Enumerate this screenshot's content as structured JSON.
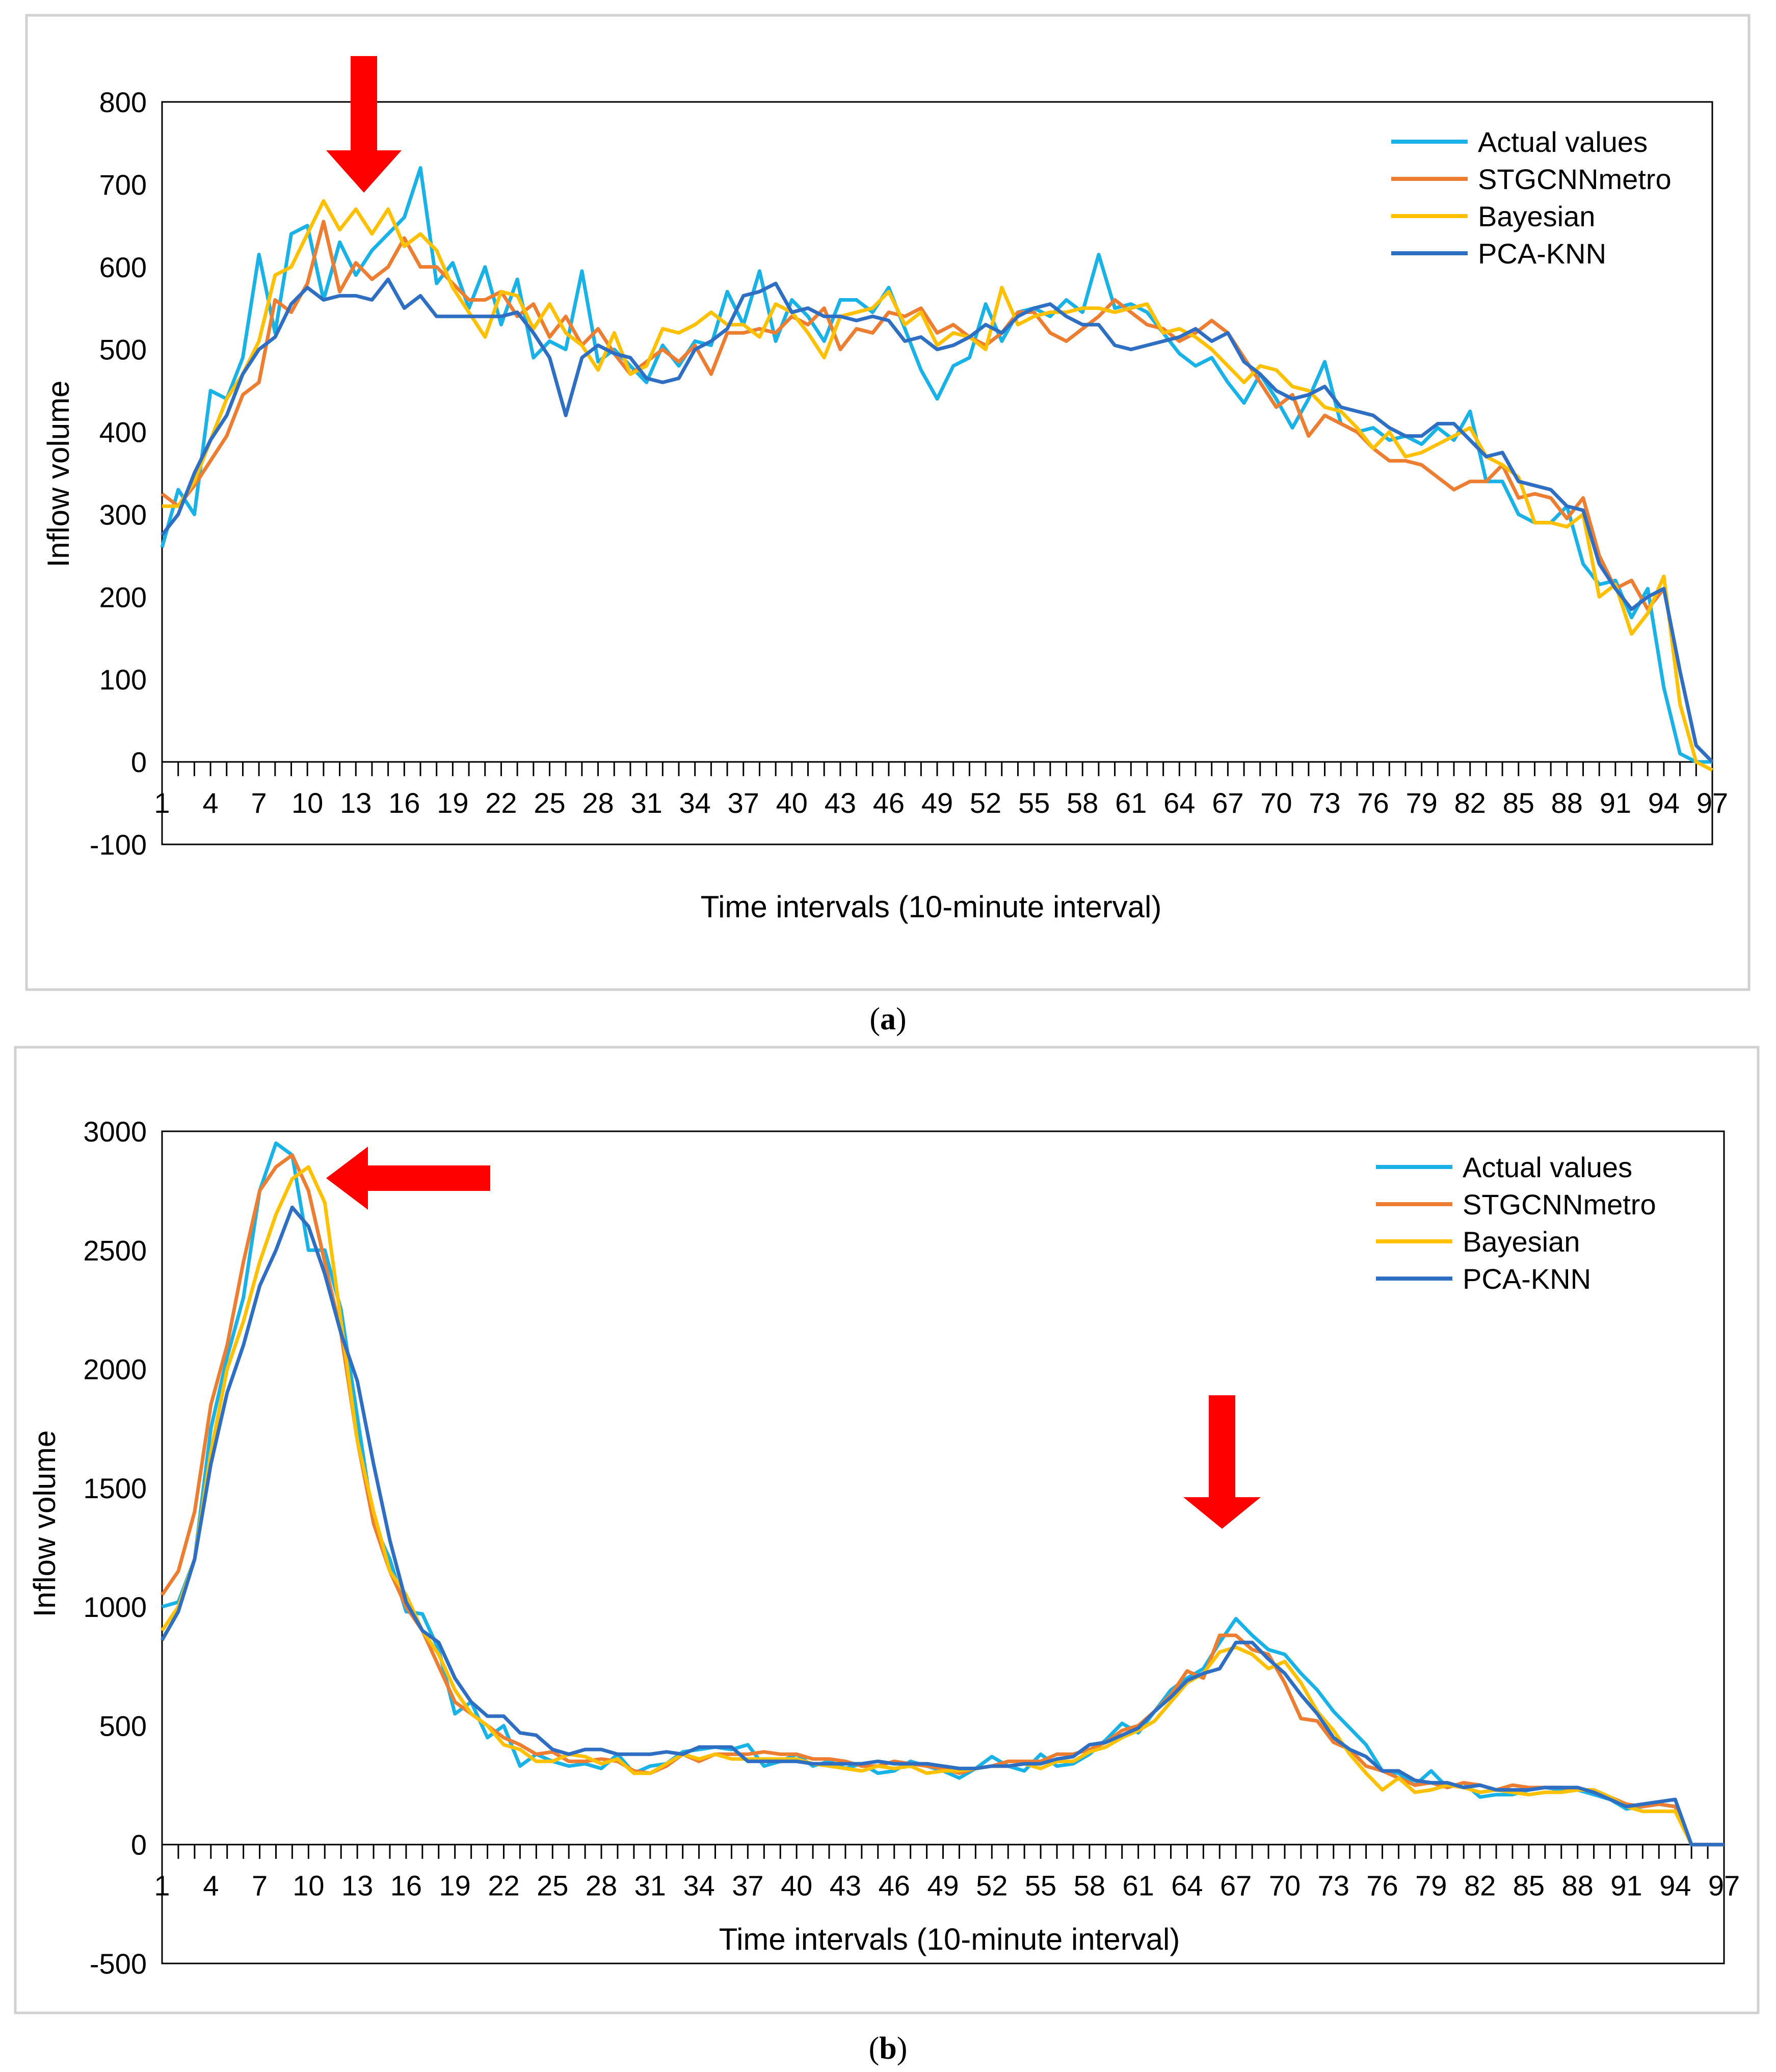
{
  "caption_a": "(a)",
  "caption_a_letter": "a",
  "caption_b": "(b)",
  "caption_b_letter": "b",
  "colors": {
    "actual": "#19B2E6",
    "stgcnn": "#ED7D31",
    "bayesian": "#FFC000",
    "pcaknn": "#2E6FC4",
    "arrow": "#FF0000",
    "frame": "#D0D0D0"
  },
  "chart_data": [
    {
      "id": "a",
      "type": "line",
      "title": "",
      "xlabel": "Time intervals (10-minute interval)",
      "ylabel": "Inflow volume",
      "ylim": [
        -100,
        800
      ],
      "yticks": [
        -100,
        0,
        100,
        200,
        300,
        400,
        500,
        600,
        700,
        800
      ],
      "xlim": [
        1,
        97
      ],
      "xticks": [
        1,
        4,
        7,
        10,
        13,
        16,
        19,
        22,
        25,
        28,
        31,
        34,
        37,
        40,
        43,
        46,
        49,
        52,
        55,
        58,
        61,
        64,
        67,
        70,
        73,
        76,
        79,
        82,
        85,
        88,
        91,
        94,
        97
      ],
      "legend": "top-right",
      "annotations": [
        {
          "type": "arrow",
          "direction": "down",
          "at_x": 13.5,
          "value": 700
        }
      ],
      "series": [
        {
          "name": "Actual values",
          "color_key": "actual",
          "values": [
            260,
            330,
            300,
            450,
            440,
            490,
            615,
            520,
            640,
            650,
            560,
            630,
            590,
            620,
            640,
            660,
            720,
            580,
            605,
            550,
            600,
            530,
            585,
            490,
            510,
            500,
            595,
            485,
            500,
            480,
            460,
            505,
            480,
            510,
            505,
            570,
            530,
            595,
            510,
            560,
            540,
            510,
            560,
            560,
            545,
            575,
            525,
            475,
            440,
            480,
            490,
            555,
            510,
            545,
            550,
            540,
            560,
            545,
            615,
            550,
            555,
            545,
            520,
            495,
            480,
            490,
            460,
            435,
            470,
            440,
            405,
            440,
            485,
            410,
            400,
            405,
            390,
            395,
            385,
            405,
            390,
            425,
            340,
            340,
            300,
            290,
            290,
            310,
            240,
            215,
            220,
            175,
            210,
            90,
            10,
            0,
            0
          ]
        },
        {
          "name": "STGCNNmetro",
          "color_key": "stgcnn",
          "values": [
            325,
            310,
            335,
            365,
            395,
            445,
            460,
            560,
            545,
            580,
            655,
            570,
            605,
            585,
            600,
            635,
            600,
            600,
            580,
            560,
            560,
            570,
            540,
            555,
            515,
            540,
            505,
            525,
            495,
            470,
            485,
            500,
            485,
            505,
            470,
            520,
            520,
            525,
            520,
            540,
            530,
            550,
            500,
            525,
            520,
            545,
            540,
            550,
            520,
            530,
            515,
            505,
            520,
            545,
            545,
            520,
            510,
            525,
            540,
            560,
            545,
            530,
            525,
            510,
            520,
            535,
            520,
            490,
            460,
            430,
            445,
            395,
            420,
            410,
            400,
            380,
            365,
            365,
            360,
            345,
            330,
            340,
            340,
            360,
            320,
            325,
            320,
            295,
            320,
            250,
            210,
            220,
            185,
            210,
            110,
            20,
            0
          ]
        },
        {
          "name": "Bayesian",
          "color_key": "bayesian",
          "values": [
            310,
            310,
            340,
            390,
            440,
            470,
            510,
            590,
            600,
            640,
            680,
            645,
            670,
            640,
            670,
            625,
            640,
            620,
            575,
            545,
            515,
            570,
            565,
            525,
            555,
            520,
            505,
            475,
            520,
            470,
            480,
            525,
            520,
            530,
            545,
            530,
            530,
            515,
            555,
            545,
            520,
            490,
            540,
            545,
            550,
            570,
            530,
            545,
            505,
            520,
            515,
            500,
            575,
            530,
            540,
            545,
            545,
            550,
            550,
            545,
            550,
            555,
            520,
            525,
            515,
            500,
            480,
            460,
            480,
            475,
            455,
            450,
            430,
            425,
            405,
            380,
            400,
            370,
            375,
            385,
            395,
            405,
            370,
            360,
            345,
            290,
            290,
            285,
            300,
            200,
            215,
            155,
            180,
            225,
            70,
            0,
            -10
          ]
        },
        {
          "name": "PCA-KNN",
          "color_key": "pcaknn",
          "values": [
            275,
            300,
            350,
            390,
            420,
            470,
            500,
            515,
            555,
            575,
            560,
            565,
            565,
            560,
            585,
            550,
            565,
            540,
            540,
            540,
            540,
            540,
            545,
            520,
            490,
            420,
            490,
            505,
            495,
            490,
            465,
            460,
            465,
            500,
            510,
            525,
            565,
            570,
            580,
            545,
            550,
            540,
            540,
            535,
            540,
            535,
            510,
            515,
            500,
            505,
            515,
            530,
            520,
            540,
            550,
            555,
            540,
            530,
            530,
            505,
            500,
            505,
            510,
            515,
            525,
            510,
            520,
            485,
            470,
            450,
            440,
            445,
            455,
            430,
            425,
            420,
            405,
            395,
            395,
            410,
            410,
            390,
            370,
            375,
            340,
            335,
            330,
            310,
            305,
            240,
            210,
            185,
            200,
            210,
            110,
            20,
            0
          ]
        }
      ]
    },
    {
      "id": "b",
      "type": "line",
      "title": "",
      "xlabel": "Time intervals (10-minute interval)",
      "ylabel": "Inflow volume",
      "ylim": [
        -500,
        3000
      ],
      "yticks": [
        -500,
        0,
        500,
        1000,
        1500,
        2000,
        2500,
        3000
      ],
      "xlim": [
        1,
        97
      ],
      "xticks": [
        1,
        4,
        7,
        10,
        13,
        16,
        19,
        22,
        25,
        28,
        31,
        34,
        37,
        40,
        43,
        46,
        49,
        52,
        55,
        58,
        61,
        64,
        67,
        70,
        73,
        76,
        79,
        82,
        85,
        88,
        91,
        94,
        97
      ],
      "legend": "top-right",
      "annotations": [
        {
          "type": "arrow",
          "direction": "left",
          "at_x": 10.5,
          "value": 2800
        },
        {
          "type": "arrow",
          "direction": "down",
          "at_x": 67,
          "value": 1100
        }
      ],
      "series": [
        {
          "name": "Actual values",
          "color_key": "actual",
          "values": [
            1000,
            1020,
            1200,
            1750,
            2050,
            2300,
            2750,
            2950,
            2900,
            2500,
            2500,
            2250,
            1800,
            1350,
            1200,
            980,
            970,
            820,
            550,
            600,
            450,
            500,
            330,
            380,
            350,
            330,
            340,
            320,
            380,
            300,
            330,
            340,
            390,
            400,
            410,
            400,
            420,
            330,
            350,
            380,
            330,
            350,
            320,
            340,
            300,
            310,
            350,
            330,
            310,
            280,
            320,
            370,
            330,
            310,
            380,
            330,
            340,
            380,
            440,
            510,
            470,
            560,
            650,
            700,
            740,
            850,
            950,
            880,
            820,
            800,
            720,
            650,
            560,
            490,
            420,
            310,
            300,
            250,
            310,
            240,
            260,
            200,
            210,
            210,
            230,
            240,
            230,
            230,
            210,
            190,
            150,
            160,
            170,
            160,
            0,
            0,
            0
          ]
        },
        {
          "name": "STGCNNmetro",
          "color_key": "stgcnn",
          "values": [
            1050,
            1150,
            1400,
            1850,
            2100,
            2450,
            2750,
            2850,
            2900,
            2750,
            2450,
            2150,
            1700,
            1350,
            1150,
            1000,
            900,
            750,
            600,
            550,
            500,
            450,
            420,
            380,
            390,
            350,
            350,
            360,
            350,
            310,
            300,
            330,
            380,
            350,
            380,
            380,
            380,
            390,
            380,
            380,
            360,
            360,
            350,
            330,
            330,
            350,
            340,
            330,
            320,
            300,
            320,
            330,
            350,
            350,
            350,
            380,
            380,
            400,
            430,
            480,
            500,
            560,
            630,
            730,
            700,
            880,
            880,
            820,
            800,
            680,
            530,
            520,
            430,
            400,
            330,
            310,
            280,
            250,
            260,
            240,
            260,
            250,
            230,
            250,
            240,
            240,
            240,
            230,
            230,
            200,
            170,
            160,
            170,
            160,
            0,
            0,
            0
          ]
        },
        {
          "name": "Bayesian",
          "color_key": "bayesian",
          "values": [
            900,
            1000,
            1200,
            1650,
            2000,
            2200,
            2450,
            2650,
            2800,
            2850,
            2700,
            2200,
            1700,
            1400,
            1150,
            1050,
            900,
            800,
            650,
            550,
            500,
            420,
            400,
            350,
            350,
            380,
            370,
            340,
            360,
            300,
            300,
            340,
            380,
            360,
            380,
            360,
            360,
            360,
            360,
            360,
            340,
            330,
            320,
            310,
            330,
            320,
            330,
            300,
            310,
            310,
            320,
            330,
            330,
            340,
            320,
            350,
            350,
            390,
            410,
            450,
            480,
            520,
            600,
            680,
            720,
            810,
            830,
            800,
            740,
            770,
            680,
            560,
            480,
            380,
            300,
            230,
            280,
            220,
            230,
            250,
            240,
            220,
            230,
            220,
            210,
            220,
            220,
            230,
            230,
            200,
            160,
            140,
            140,
            140,
            0,
            0,
            0
          ]
        },
        {
          "name": "PCA-KNN",
          "color_key": "pcaknn",
          "values": [
            860,
            980,
            1200,
            1600,
            1900,
            2100,
            2350,
            2500,
            2680,
            2600,
            2400,
            2150,
            1950,
            1600,
            1280,
            1020,
            900,
            850,
            700,
            600,
            540,
            540,
            470,
            460,
            400,
            380,
            400,
            400,
            380,
            380,
            380,
            390,
            380,
            410,
            410,
            410,
            350,
            350,
            350,
            350,
            340,
            340,
            340,
            340,
            350,
            340,
            340,
            340,
            330,
            320,
            320,
            330,
            330,
            340,
            340,
            360,
            370,
            420,
            430,
            460,
            490,
            560,
            620,
            690,
            720,
            740,
            850,
            850,
            780,
            720,
            630,
            550,
            450,
            400,
            370,
            310,
            310,
            270,
            260,
            260,
            240,
            250,
            230,
            230,
            230,
            240,
            240,
            240,
            220,
            190,
            160,
            170,
            180,
            190,
            0,
            0,
            0
          ]
        }
      ]
    }
  ]
}
